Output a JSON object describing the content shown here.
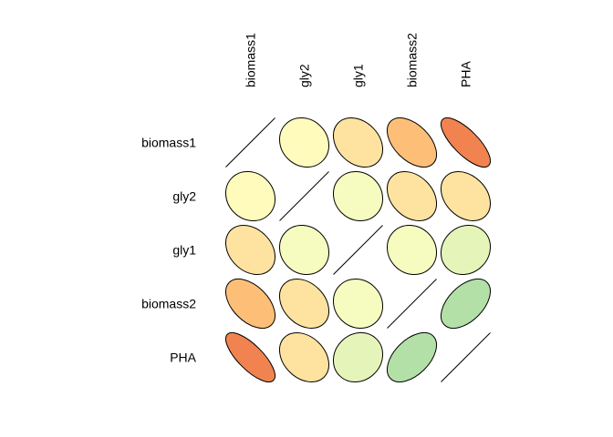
{
  "chart_data": {
    "type": "heatmap",
    "variables": [
      "biomass1",
      "gly2",
      "gly1",
      "biomass2",
      "PHA"
    ],
    "row_labels": [
      "biomass1",
      "gly2",
      "gly1",
      "biomass2",
      "PHA"
    ],
    "col_labels": [
      "biomass1",
      "gly2",
      "gly1",
      "biomass2",
      "PHA"
    ],
    "values": [
      [
        1.0,
        0.12,
        0.28,
        0.48,
        0.75
      ],
      [
        0.12,
        1.0,
        0.1,
        0.3,
        0.3
      ],
      [
        0.28,
        0.1,
        1.0,
        0.1,
        -0.12
      ],
      [
        0.48,
        0.3,
        0.1,
        1.0,
        -0.5
      ],
      [
        0.75,
        0.3,
        -0.12,
        -0.5,
        1.0
      ]
    ],
    "diagonal": "line",
    "value_range": [
      -1,
      1
    ],
    "mark": "ellipse",
    "legend": "none",
    "palette": {
      "strong_positive": "#f08350",
      "positive": "#fdbf78",
      "weak_positive": "#fee3a0",
      "very_weak_positive": "#fefbbd",
      "near_zero": "#f6fcc0",
      "weak_negative": "#e5f5b9",
      "negative": "#b3e0a7"
    }
  }
}
